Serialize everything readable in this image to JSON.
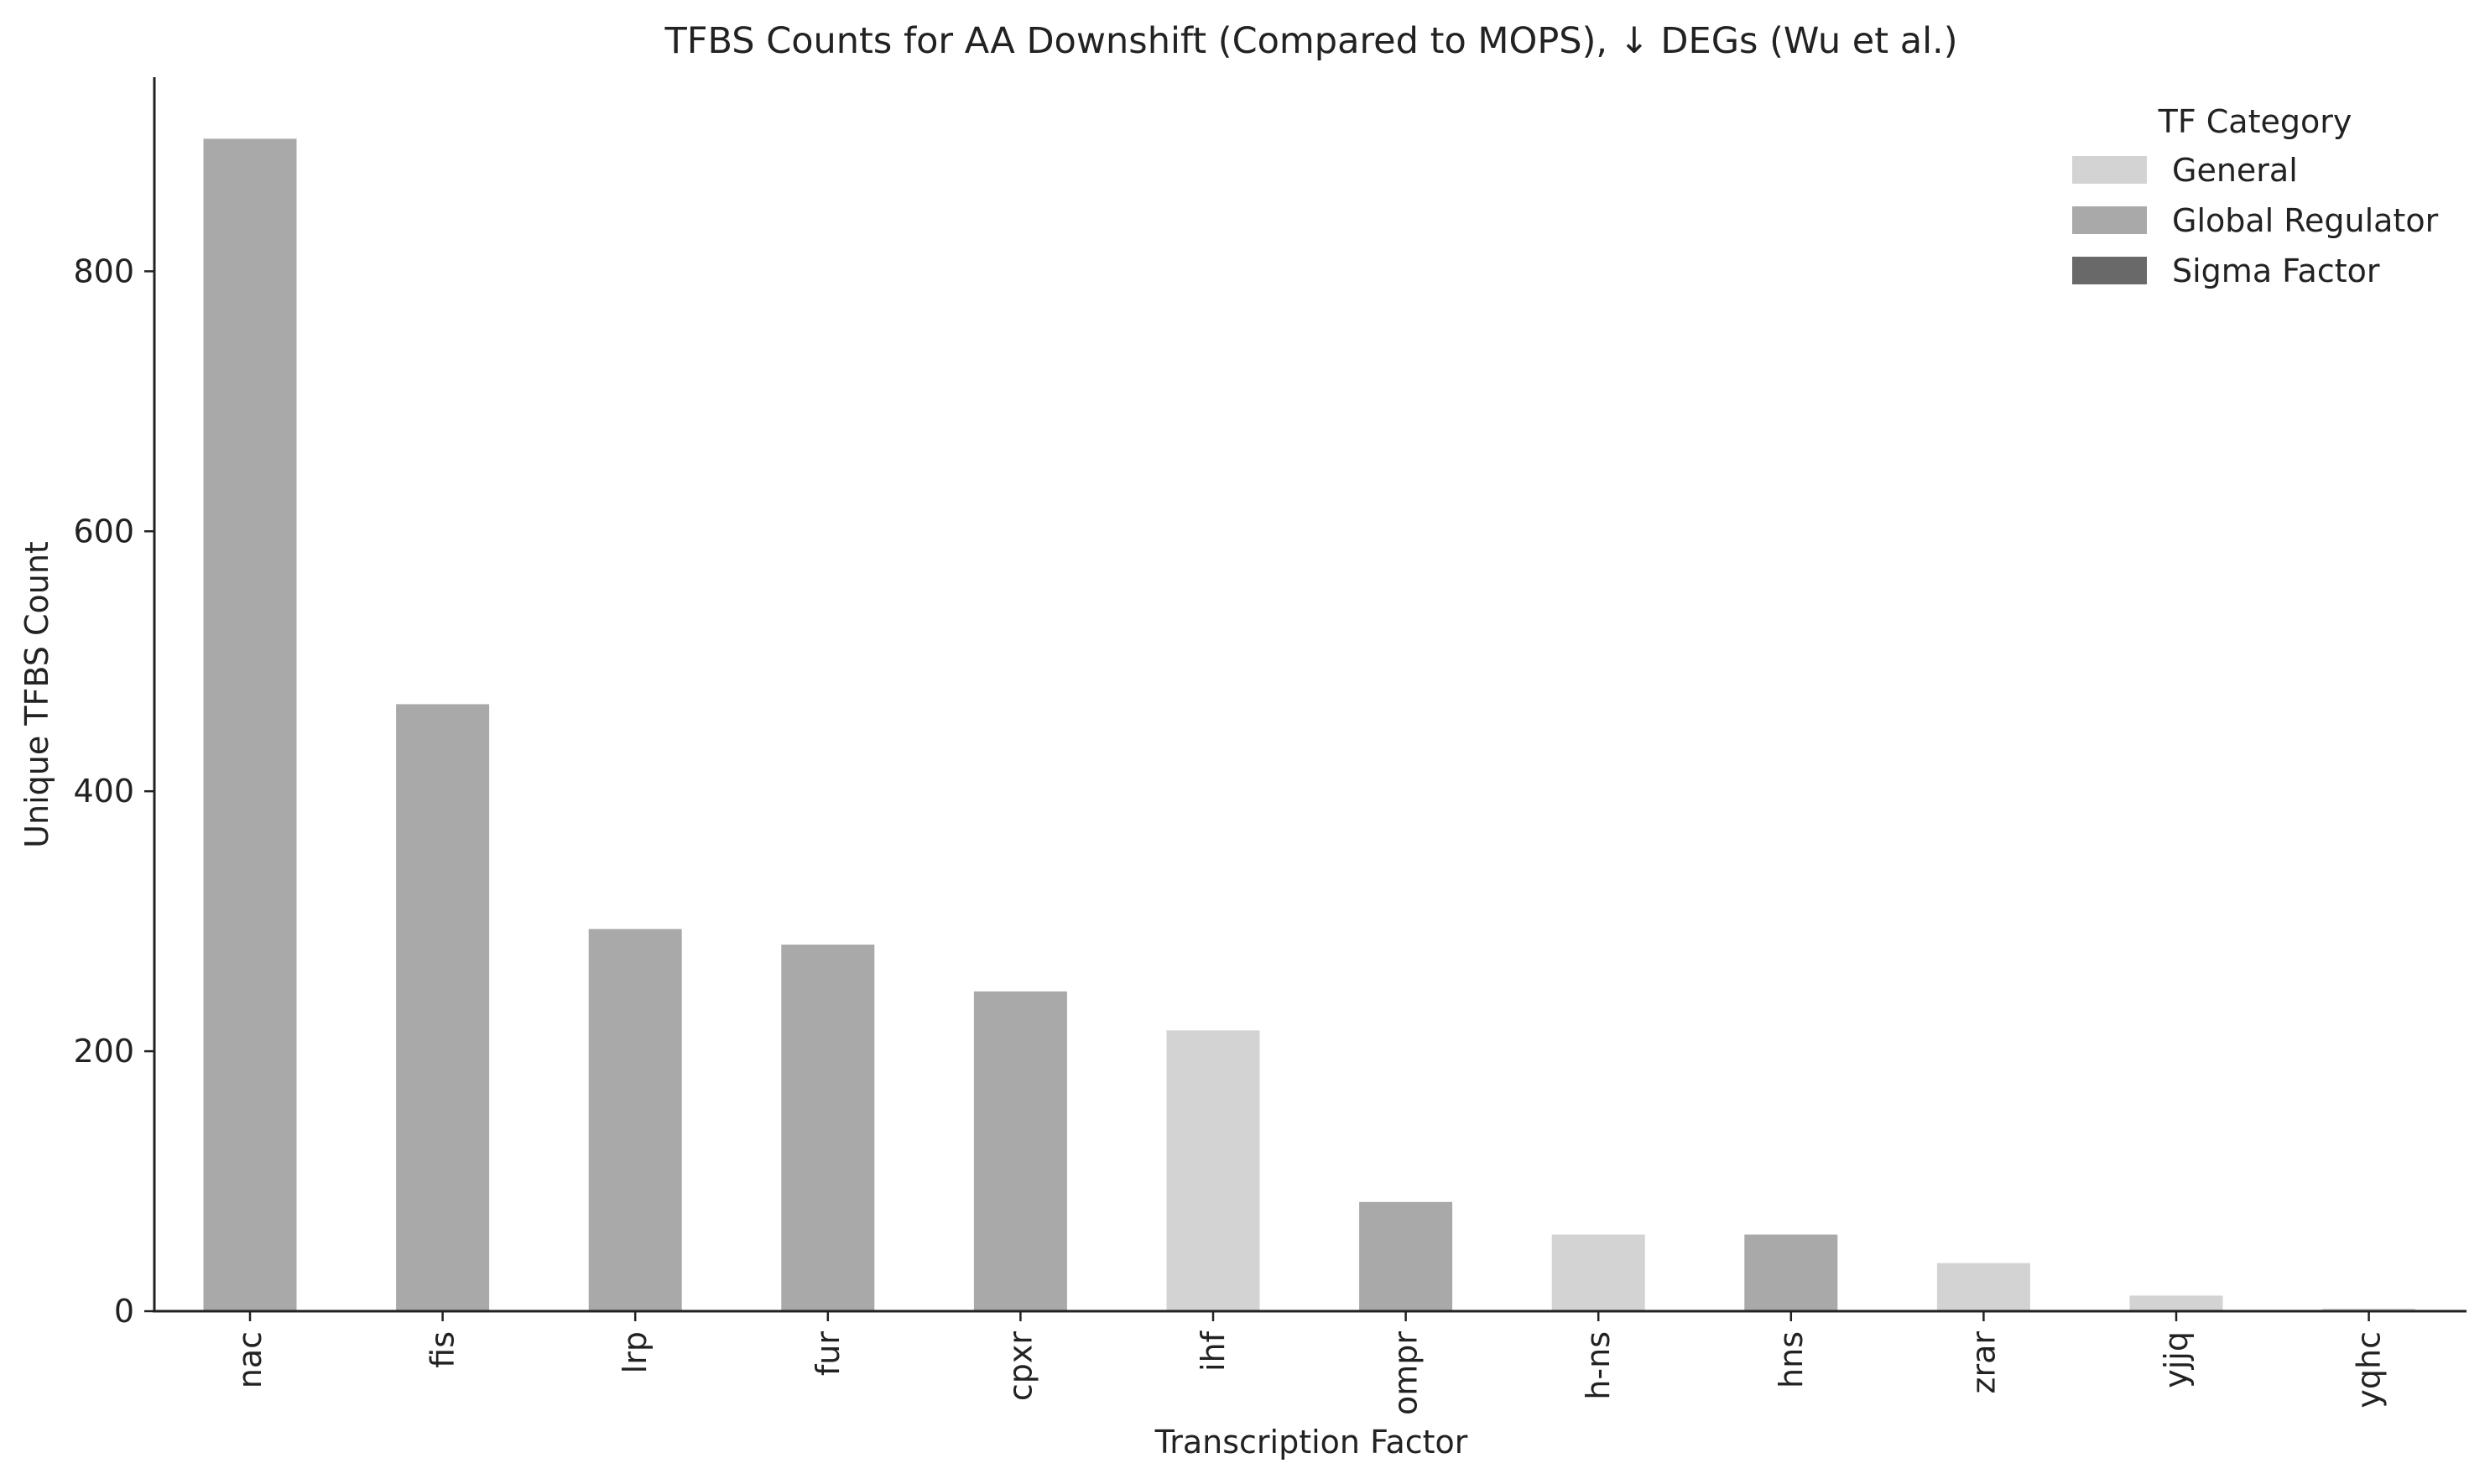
{
  "chart_data": {
    "type": "bar",
    "title": "TFBS Counts for AA Downshift (Compared to MOPS), ↓ DEGs (Wu et al.)",
    "xlabel": "Transcription Factor",
    "ylabel": "Unique TFBS Count",
    "ylim": [
      0,
      940
    ],
    "yticks": [
      "0",
      "200",
      "400",
      "600",
      "800"
    ],
    "ytick_values": [
      0,
      200,
      400,
      600,
      800
    ],
    "grid": false,
    "legend_position": "top-right",
    "legend": {
      "title": "TF Category",
      "entries": [
        {
          "label": "General",
          "color": "#d3d3d3"
        },
        {
          "label": "Global Regulator",
          "color": "#a9a9a9"
        },
        {
          "label": "Sigma Factor",
          "color": "#696969"
        }
      ]
    },
    "categories": [
      "nac",
      "fis",
      "lrp",
      "fur",
      "cpxr",
      "ihf",
      "ompr",
      "h-ns",
      "hns",
      "zrar",
      "yjjq",
      "yqhc"
    ],
    "values": [
      902,
      467,
      294,
      282,
      246,
      216,
      84,
      59,
      59,
      37,
      12,
      2
    ],
    "bar_categories": [
      "Global Regulator",
      "Global Regulator",
      "Global Regulator",
      "Global Regulator",
      "Global Regulator",
      "General",
      "Global Regulator",
      "General",
      "Global Regulator",
      "General",
      "General",
      "General"
    ]
  }
}
